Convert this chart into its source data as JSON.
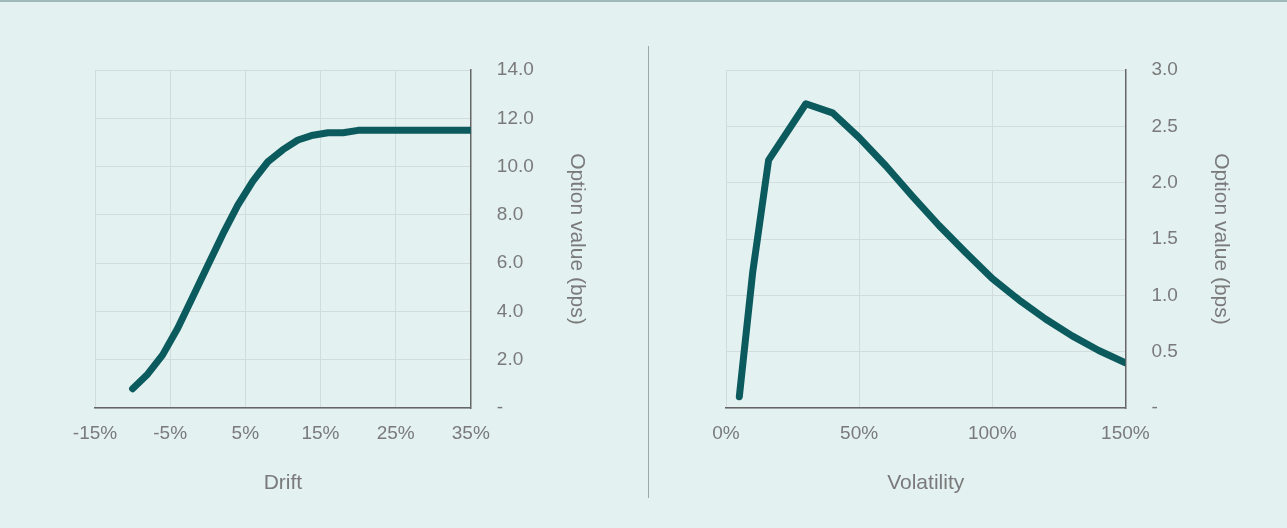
{
  "chart_data": [
    {
      "type": "line",
      "xlabel": "Drift",
      "ylabel": "Option value (bps)",
      "x": [
        -10,
        -8,
        -6,
        -4,
        -2,
        0,
        2,
        4,
        6,
        8,
        10,
        12,
        14,
        16,
        18,
        20,
        25,
        30,
        35
      ],
      "series": [
        {
          "color": "#0b5a5e",
          "values": [
            0.8,
            1.4,
            2.2,
            3.3,
            4.6,
            5.9,
            7.2,
            8.4,
            9.4,
            10.2,
            10.7,
            11.1,
            11.3,
            11.4,
            11.4,
            11.5,
            11.5,
            11.5,
            11.5
          ]
        }
      ],
      "xlim": [
        -15,
        35
      ],
      "xticks": [
        {
          "value": -15,
          "label": "-15%"
        },
        {
          "value": -5,
          "label": "-5%"
        },
        {
          "value": 5,
          "label": "5%"
        },
        {
          "value": 15,
          "label": "15%"
        },
        {
          "value": 25,
          "label": "25%"
        },
        {
          "value": 35,
          "label": "35%"
        }
      ],
      "ylim": [
        0,
        14
      ],
      "yticks": [
        {
          "value": 0,
          "label": "-"
        },
        {
          "value": 2,
          "label": "2.0"
        },
        {
          "value": 4,
          "label": "4.0"
        },
        {
          "value": 6,
          "label": "6.0"
        },
        {
          "value": 8,
          "label": "8.0"
        },
        {
          "value": 10,
          "label": "10.0"
        },
        {
          "value": 12,
          "label": "12.0"
        },
        {
          "value": 14,
          "label": "14.0"
        }
      ],
      "grid": true,
      "marker": "none",
      "line_style": "solid"
    },
    {
      "type": "line",
      "xlabel": "Volatility",
      "ylabel": "Option value (bps)",
      "x": [
        5,
        10,
        16,
        30,
        40,
        50,
        60,
        70,
        80,
        90,
        100,
        110,
        120,
        130,
        140,
        150
      ],
      "series": [
        {
          "color": "#0b5a5e",
          "values": [
            0.1,
            1.2,
            2.2,
            2.7,
            2.62,
            2.4,
            2.15,
            1.88,
            1.62,
            1.38,
            1.15,
            0.96,
            0.79,
            0.64,
            0.51,
            0.4
          ]
        }
      ],
      "xlim": [
        0,
        150
      ],
      "xticks": [
        {
          "value": 0,
          "label": "0%"
        },
        {
          "value": 50,
          "label": "50%"
        },
        {
          "value": 100,
          "label": "100%"
        },
        {
          "value": 150,
          "label": "150%"
        }
      ],
      "ylim": [
        0,
        3
      ],
      "yticks": [
        {
          "value": 0,
          "label": "-"
        },
        {
          "value": 0.5,
          "label": "0.5"
        },
        {
          "value": 1,
          "label": "1.0"
        },
        {
          "value": 1.5,
          "label": "1.5"
        },
        {
          "value": 2,
          "label": "2.0"
        },
        {
          "value": 2.5,
          "label": "2.5"
        },
        {
          "value": 3,
          "label": "3.0"
        }
      ],
      "grid": true,
      "marker": "none",
      "line_style": "solid"
    }
  ]
}
